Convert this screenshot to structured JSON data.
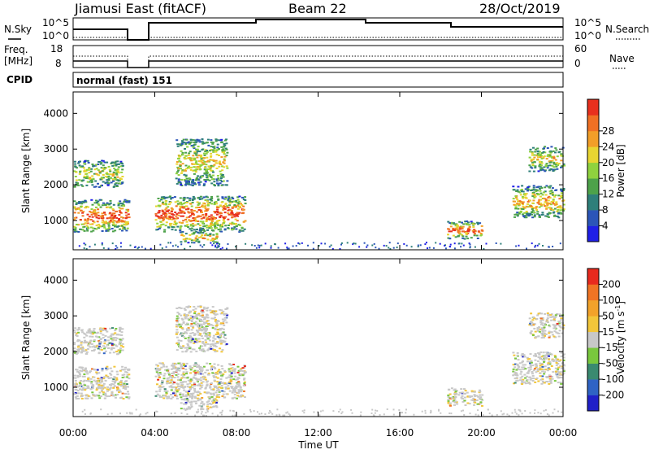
{
  "header": {
    "site": "Jiamusi East (fitACF)",
    "beam": "Beam 22",
    "date": "28/Oct/2019"
  },
  "top_panels": {
    "nsky_label": "N.Sky",
    "nsky_ticks": [
      "10^5",
      "10^0"
    ],
    "nsearch_label": "N.Search",
    "nsearch_ticks": [
      "10^5",
      "10^0"
    ],
    "freq_label_line1": "Freq.",
    "freq_label_line2": "[MHz]",
    "freq_ticks": [
      "18",
      "8"
    ],
    "nave_label": "Nave",
    "nave_ticks": [
      "60",
      "0"
    ],
    "cpid_label": "CPID",
    "cpid_text": "normal (fast) 151"
  },
  "chart_data": [
    {
      "type": "heatmap",
      "name": "power",
      "ylabel": "Slant Range [km]",
      "yticks": [
        1000,
        2000,
        3000,
        4000
      ],
      "ylim": [
        180,
        4600
      ],
      "xlim_hours": [
        0,
        24
      ],
      "colorbar_label": "Power [dB]",
      "colorbar_ticks": [
        4,
        8,
        12,
        16,
        20,
        24,
        28
      ],
      "colorbar_colors": [
        "#1f1fe6",
        "#2b55b8",
        "#2e7f7a",
        "#4da24a",
        "#8fd23e",
        "#e8d531",
        "#f29e28",
        "#f07024",
        "#e8301e"
      ],
      "echo_regions": [
        {
          "t0": 0.0,
          "t1": 2.7,
          "r0": 700,
          "r1": 1600,
          "level": 0.75
        },
        {
          "t0": 0.0,
          "t1": 2.4,
          "r0": 1950,
          "r1": 2700,
          "level": 0.4
        },
        {
          "t0": 4.0,
          "t1": 8.4,
          "r0": 700,
          "r1": 1700,
          "level": 0.75
        },
        {
          "t0": 5.0,
          "t1": 7.5,
          "r0": 2000,
          "r1": 3300,
          "level": 0.45
        },
        {
          "t0": 5.2,
          "t1": 7.0,
          "r0": 400,
          "r1": 700,
          "level": 0.55
        },
        {
          "t0": 18.3,
          "t1": 20.0,
          "r0": 500,
          "r1": 1000,
          "level": 0.7
        },
        {
          "t0": 21.5,
          "t1": 24.0,
          "r0": 1100,
          "r1": 2000,
          "level": 0.55
        },
        {
          "t0": 22.3,
          "t1": 24.0,
          "r0": 2400,
          "r1": 3100,
          "level": 0.45
        }
      ]
    },
    {
      "type": "heatmap",
      "name": "velocity",
      "ylabel": "Slant Range [km]",
      "yticks": [
        1000,
        2000,
        3000,
        4000
      ],
      "ylim": [
        180,
        4600
      ],
      "xlim_hours": [
        0,
        24
      ],
      "xticks": [
        "00:00",
        "04:00",
        "08:00",
        "12:00",
        "16:00",
        "20:00",
        "00:00"
      ],
      "xlabel": "Time UT",
      "colorbar_label": "Velocity [m s",
      "colorbar_label_sup": "-1",
      "colorbar_label_end": "]",
      "colorbar_ticks": [
        200,
        100,
        50,
        15,
        -15,
        -50,
        -100,
        -200
      ],
      "colorbar_colors": [
        "#2020c8",
        "#2f63c4",
        "#3a8a70",
        "#79c83d",
        "#c8c8c8",
        "#f2c63a",
        "#f2a22a",
        "#f07424",
        "#e82a1e"
      ],
      "echo_regions": [
        {
          "t0": 0.0,
          "t1": 2.7,
          "r0": 700,
          "r1": 1600,
          "level": 0.5
        },
        {
          "t0": 0.0,
          "t1": 2.4,
          "r0": 1950,
          "r1": 2700,
          "level": 0.55
        },
        {
          "t0": 4.0,
          "t1": 8.4,
          "r0": 700,
          "r1": 1700,
          "level": 0.5
        },
        {
          "t0": 5.0,
          "t1": 7.5,
          "r0": 2000,
          "r1": 3300,
          "level": 0.6
        },
        {
          "t0": 5.2,
          "t1": 7.0,
          "r0": 400,
          "r1": 700,
          "level": 0.5
        },
        {
          "t0": 18.3,
          "t1": 20.0,
          "r0": 500,
          "r1": 1000,
          "level": 0.5
        },
        {
          "t0": 21.5,
          "t1": 24.0,
          "r0": 1100,
          "r1": 2000,
          "level": 0.5
        },
        {
          "t0": 22.3,
          "t1": 24.0,
          "r0": 2400,
          "r1": 3100,
          "level": 0.5
        }
      ]
    }
  ]
}
